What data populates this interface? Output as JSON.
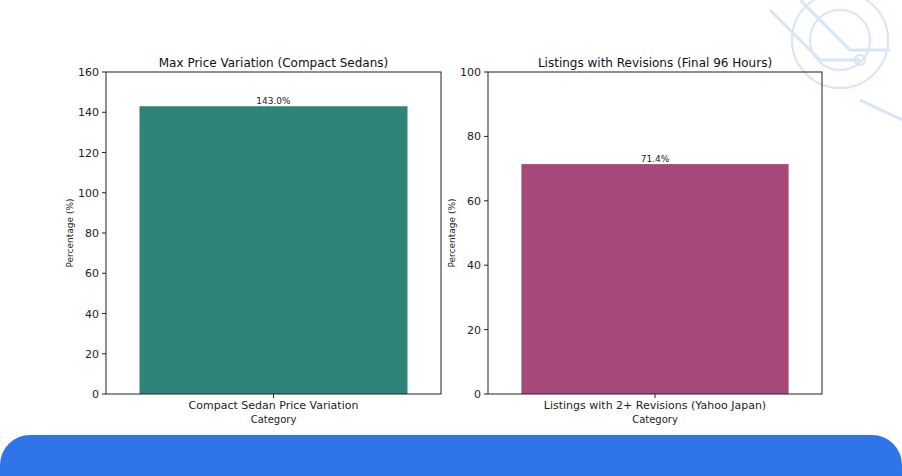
{
  "chart_data": [
    {
      "type": "bar",
      "title": "Max Price Variation (Compact Sedans)",
      "x_label": "Category",
      "y_label": "Percentage (%)",
      "categories": [
        "Compact Sedan Price Variation"
      ],
      "values": [
        143.0
      ],
      "value_labels": [
        "143.0%"
      ],
      "color": "#2e8479",
      "ylim": [
        0,
        160
      ],
      "yticks": [
        0,
        20,
        40,
        60,
        80,
        100,
        120,
        140,
        160
      ],
      "grid": false,
      "data_labels": true
    },
    {
      "type": "bar",
      "title": "Listings with Revisions (Final 96 Hours)",
      "x_label": "Category",
      "y_label": "Percentage (%)",
      "categories": [
        "Listings with 2+ Revisions (Yahoo Japan)"
      ],
      "values": [
        71.4
      ],
      "value_labels": [
        "71.4%"
      ],
      "color": "#a6497a",
      "ylim": [
        0,
        100
      ],
      "yticks": [
        0,
        20,
        40,
        60,
        80,
        100
      ],
      "grid": false,
      "data_labels": true
    }
  ]
}
